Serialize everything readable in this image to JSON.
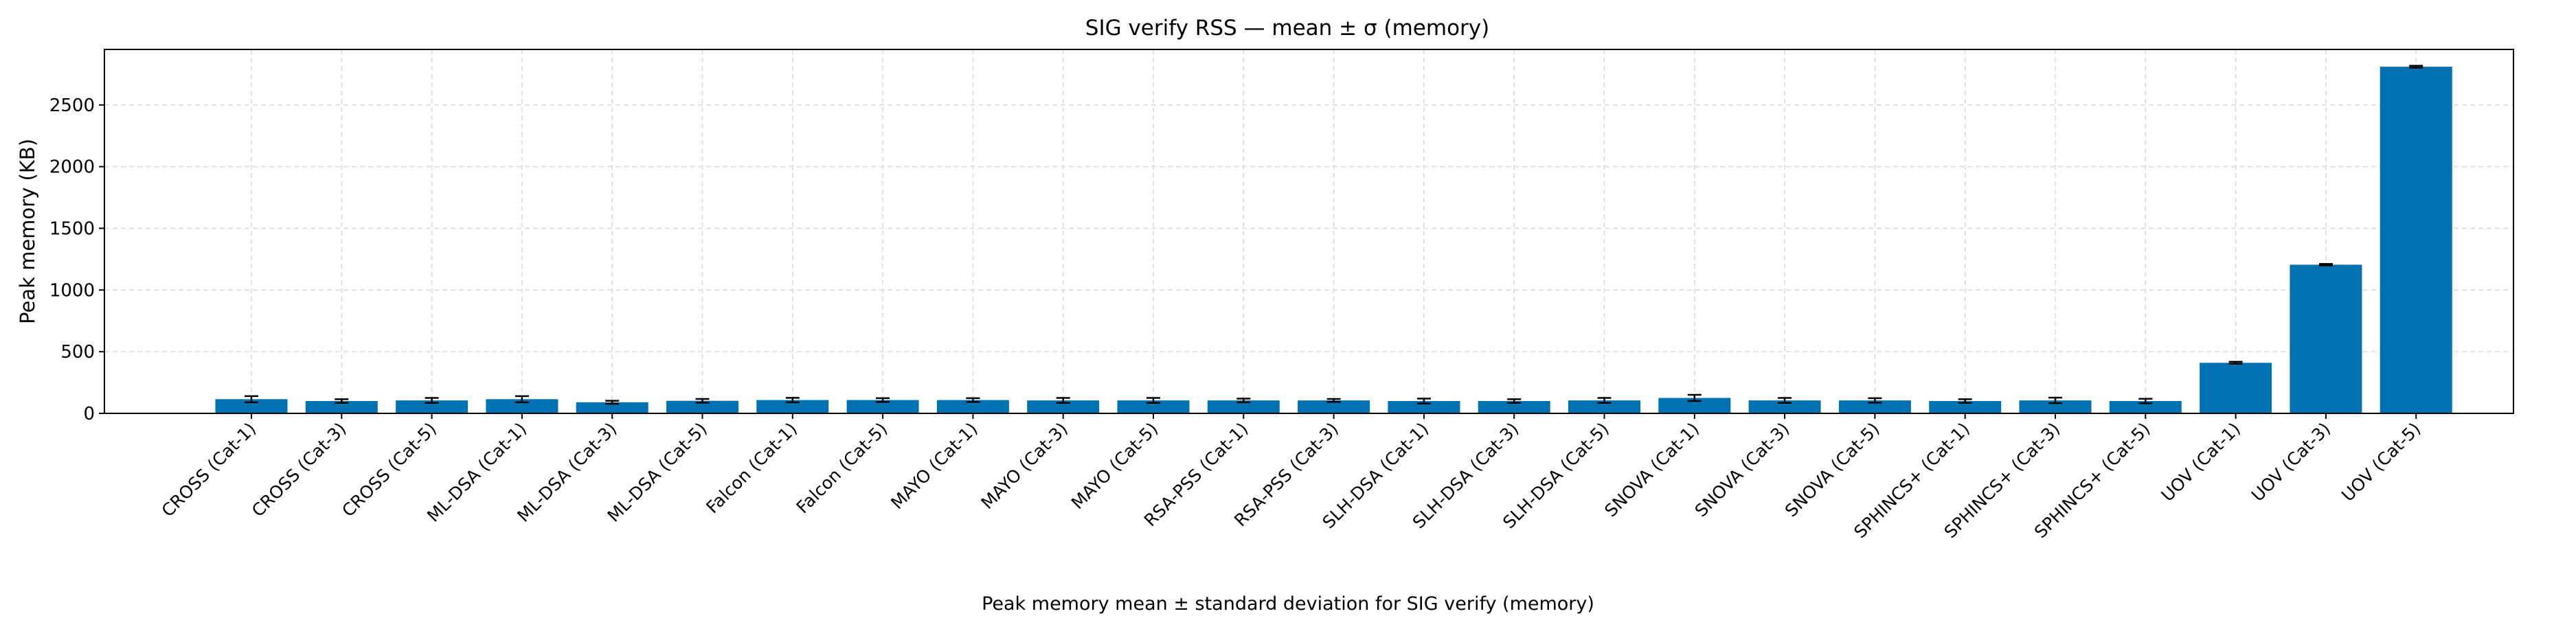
{
  "chart_data": {
    "type": "bar",
    "title": "SIG verify RSS — mean ± σ (memory)",
    "ylabel": "Peak memory (KB)",
    "xlabel": "",
    "caption": "Peak memory mean ± standard deviation for SIG verify (memory)",
    "ylim": [
      0,
      2950
    ],
    "yticks": [
      0,
      500,
      1000,
      1500,
      2000,
      2500
    ],
    "grid": true,
    "bar_color": "#0072b2",
    "categories": [
      "CROSS (Cat-1)",
      "CROSS (Cat-3)",
      "CROSS (Cat-5)",
      "ML-DSA (Cat-1)",
      "ML-DSA (Cat-3)",
      "ML-DSA (Cat-5)",
      "Falcon (Cat-1)",
      "Falcon (Cat-5)",
      "MAYO (Cat-1)",
      "MAYO (Cat-3)",
      "MAYO (Cat-5)",
      "RSA-PSS (Cat-1)",
      "RSA-PSS (Cat-3)",
      "SLH-DSA (Cat-1)",
      "SLH-DSA (Cat-3)",
      "SLH-DSA (Cat-5)",
      "SNOVA (Cat-1)",
      "SNOVA (Cat-3)",
      "SNOVA (Cat-5)",
      "SPHINCS+ (Cat-1)",
      "SPHINCS+ (Cat-3)",
      "SPHINCS+ (Cat-5)",
      "UOV (Cat-1)",
      "UOV (Cat-3)",
      "UOV (Cat-5)"
    ],
    "values": [
      115,
      100,
      105,
      115,
      90,
      102,
      108,
      108,
      108,
      105,
      105,
      105,
      105,
      100,
      100,
      105,
      125,
      105,
      105,
      100,
      105,
      100,
      410,
      1205,
      2810
    ],
    "errors": [
      25,
      15,
      20,
      25,
      12,
      15,
      18,
      15,
      15,
      20,
      20,
      15,
      12,
      20,
      15,
      20,
      25,
      20,
      18,
      15,
      22,
      18,
      8,
      6,
      8
    ]
  }
}
